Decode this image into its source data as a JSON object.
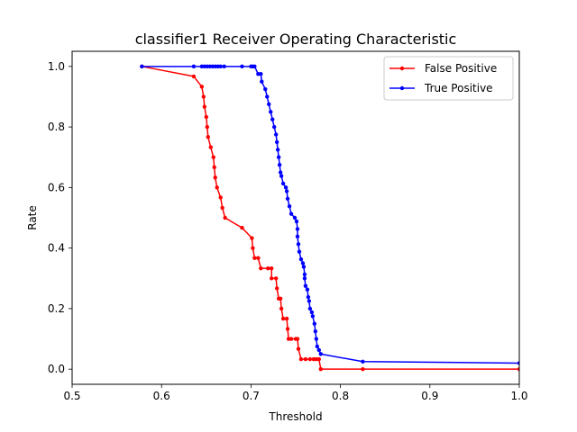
{
  "chart_data": {
    "type": "line",
    "title": "classifier1 Receiver Operating Characteristic",
    "xlabel": "Threshold",
    "ylabel": "Rate",
    "xlim": [
      0.5,
      1.0
    ],
    "ylim": [
      -0.05,
      1.05
    ],
    "x_ticks": [
      0.5,
      0.6,
      0.7,
      0.8,
      0.9,
      1.0
    ],
    "x_tick_labels": [
      "0.5",
      "0.6",
      "0.7",
      "0.8",
      "0.9",
      "1.0"
    ],
    "y_ticks": [
      0.0,
      0.2,
      0.4,
      0.6,
      0.8,
      1.0
    ],
    "y_tick_labels": [
      "0.0",
      "0.2",
      "0.4",
      "0.6",
      "0.8",
      "1.0"
    ],
    "grid": false,
    "legend_position": "top-right",
    "series": [
      {
        "name": "False Positive",
        "color": "#ff0000",
        "points": [
          [
            0.578,
            1.0
          ],
          [
            0.636,
            0.967
          ],
          [
            0.645,
            0.933
          ],
          [
            0.647,
            0.9
          ],
          [
            0.648,
            0.867
          ],
          [
            0.65,
            0.833
          ],
          [
            0.651,
            0.8
          ],
          [
            0.652,
            0.767
          ],
          [
            0.655,
            0.733
          ],
          [
            0.658,
            0.7
          ],
          [
            0.659,
            0.667
          ],
          [
            0.66,
            0.633
          ],
          [
            0.662,
            0.6
          ],
          [
            0.666,
            0.567
          ],
          [
            0.668,
            0.533
          ],
          [
            0.671,
            0.5
          ],
          [
            0.69,
            0.467
          ],
          [
            0.701,
            0.433
          ],
          [
            0.702,
            0.4
          ],
          [
            0.704,
            0.367
          ],
          [
            0.708,
            0.367
          ],
          [
            0.711,
            0.333
          ],
          [
            0.719,
            0.333
          ],
          [
            0.723,
            0.333
          ],
          [
            0.723,
            0.3
          ],
          [
            0.728,
            0.3
          ],
          [
            0.729,
            0.267
          ],
          [
            0.731,
            0.233
          ],
          [
            0.733,
            0.233
          ],
          [
            0.734,
            0.2
          ],
          [
            0.736,
            0.167
          ],
          [
            0.74,
            0.167
          ],
          [
            0.741,
            0.133
          ],
          [
            0.742,
            0.1
          ],
          [
            0.745,
            0.1
          ],
          [
            0.75,
            0.1
          ],
          [
            0.752,
            0.1
          ],
          [
            0.753,
            0.067
          ],
          [
            0.756,
            0.033
          ],
          [
            0.761,
            0.033
          ],
          [
            0.766,
            0.033
          ],
          [
            0.77,
            0.033
          ],
          [
            0.773,
            0.033
          ],
          [
            0.776,
            0.033
          ],
          [
            0.778,
            0.0
          ],
          [
            0.825,
            0.0
          ],
          [
            1.0,
            0.0
          ]
        ]
      },
      {
        "name": "True Positive",
        "color": "#0000ff",
        "points": [
          [
            0.578,
            1.0
          ],
          [
            0.636,
            1.0
          ],
          [
            0.645,
            1.0
          ],
          [
            0.648,
            1.0
          ],
          [
            0.651,
            1.0
          ],
          [
            0.654,
            1.0
          ],
          [
            0.657,
            1.0
          ],
          [
            0.66,
            1.0
          ],
          [
            0.663,
            1.0
          ],
          [
            0.666,
            1.0
          ],
          [
            0.67,
            1.0
          ],
          [
            0.69,
            1.0
          ],
          [
            0.7,
            1.0
          ],
          [
            0.702,
            1.0
          ],
          [
            0.704,
            1.0
          ],
          [
            0.708,
            0.975
          ],
          [
            0.711,
            0.975
          ],
          [
            0.712,
            0.95
          ],
          [
            0.716,
            0.925
          ],
          [
            0.718,
            0.9
          ],
          [
            0.72,
            0.875
          ],
          [
            0.722,
            0.85
          ],
          [
            0.724,
            0.825
          ],
          [
            0.726,
            0.8
          ],
          [
            0.728,
            0.775
          ],
          [
            0.729,
            0.75
          ],
          [
            0.73,
            0.725
          ],
          [
            0.731,
            0.7
          ],
          [
            0.732,
            0.675
          ],
          [
            0.733,
            0.65
          ],
          [
            0.734,
            0.638
          ],
          [
            0.736,
            0.613
          ],
          [
            0.739,
            0.6
          ],
          [
            0.74,
            0.588
          ],
          [
            0.741,
            0.563
          ],
          [
            0.743,
            0.538
          ],
          [
            0.745,
            0.513
          ],
          [
            0.749,
            0.5
          ],
          [
            0.751,
            0.488
          ],
          [
            0.752,
            0.463
          ],
          [
            0.752,
            0.438
          ],
          [
            0.753,
            0.413
          ],
          [
            0.754,
            0.388
          ],
          [
            0.756,
            0.363
          ],
          [
            0.758,
            0.35
          ],
          [
            0.759,
            0.338
          ],
          [
            0.76,
            0.313
          ],
          [
            0.76,
            0.3
          ],
          [
            0.761,
            0.275
          ],
          [
            0.763,
            0.263
          ],
          [
            0.764,
            0.238
          ],
          [
            0.765,
            0.225
          ],
          [
            0.766,
            0.2
          ],
          [
            0.768,
            0.188
          ],
          [
            0.769,
            0.175
          ],
          [
            0.771,
            0.15
          ],
          [
            0.772,
            0.125
          ],
          [
            0.773,
            0.1
          ],
          [
            0.774,
            0.075
          ],
          [
            0.776,
            0.063
          ],
          [
            0.778,
            0.05
          ],
          [
            0.825,
            0.025
          ],
          [
            1.0,
            0.02
          ]
        ]
      }
    ]
  }
}
